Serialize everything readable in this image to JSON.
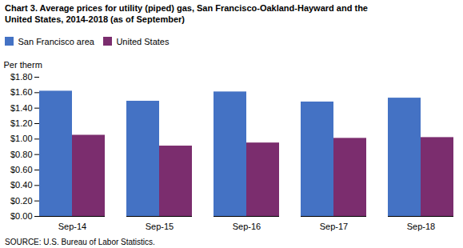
{
  "chart_data": {
    "type": "bar",
    "title": "Chart 3. Average prices for utility (piped) gas, San Francisco-Oakland-Hayward and the\nUnited States, 2014-2018  (as of September)",
    "ylabel": "Per therm",
    "source": "SOURCE: U.S. Bureau of Labor Statistics.",
    "categories": [
      "Sep-14",
      "Sep-15",
      "Sep-16",
      "Sep-17",
      "Sep-18"
    ],
    "series": [
      {
        "name": "San Francisco area",
        "color": "#4472C4",
        "values": [
          1.62,
          1.49,
          1.61,
          1.48,
          1.53
        ]
      },
      {
        "name": "United States",
        "color": "#7B2D6E",
        "values": [
          1.05,
          0.91,
          0.95,
          1.01,
          1.02
        ]
      }
    ],
    "ylim": [
      0.0,
      1.8
    ],
    "yticks": [
      {
        "value": 0.0,
        "label": "$0.00"
      },
      {
        "value": 0.2,
        "label": "$0.20"
      },
      {
        "value": 0.4,
        "label": "$0.40"
      },
      {
        "value": 0.6,
        "label": "$0.60"
      },
      {
        "value": 0.8,
        "label": "$0.80"
      },
      {
        "value": 1.0,
        "label": "$1.00"
      },
      {
        "value": 1.2,
        "label": "$1.20"
      },
      {
        "value": 1.4,
        "label": "$1.40"
      },
      {
        "value": 1.6,
        "label": "$1.60"
      },
      {
        "value": 1.8,
        "label": "$1.80"
      }
    ],
    "legend": "upper left",
    "grid": false
  }
}
